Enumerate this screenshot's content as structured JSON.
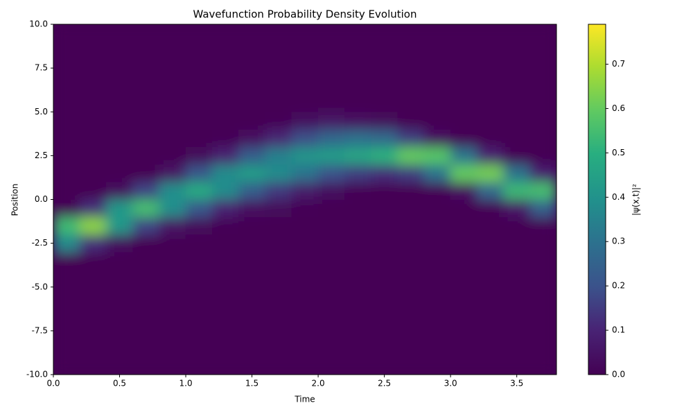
{
  "chart_data": {
    "type": "heatmap",
    "title": "Wavefunction Probability Density Evolution",
    "x_label": "Time",
    "y_label": "Position",
    "colorbar_label": "|ψ(x,t)|²",
    "x": [
      0,
      0.2,
      0.4,
      0.6,
      0.8,
      1.0,
      1.2,
      1.4,
      1.6,
      1.8,
      2.0,
      2.2,
      2.4,
      2.6,
      2.8,
      3.0,
      3.2,
      3.4,
      3.6,
      3.8
    ],
    "y": [
      -10,
      -9,
      -8,
      -7,
      -6,
      -5,
      -4,
      -3,
      -2,
      -1,
      0,
      1,
      2,
      3,
      4,
      5,
      6,
      7,
      8,
      9,
      10
    ],
    "values": [
      [
        0,
        0,
        0,
        0,
        0,
        0,
        0,
        0,
        0,
        0,
        0,
        0,
        0,
        0,
        0,
        0,
        0,
        0,
        0
      ],
      [
        0,
        0,
        0,
        0,
        0,
        0,
        0,
        0,
        0,
        0,
        0,
        0,
        0,
        0,
        0,
        0,
        0,
        0,
        0
      ],
      [
        0,
        0,
        0,
        0,
        0,
        0,
        0,
        0,
        0,
        0,
        0,
        0,
        0,
        0,
        0,
        0,
        0,
        0,
        0
      ],
      [
        0,
        0,
        0,
        0,
        0,
        0,
        0,
        0,
        0,
        0,
        0,
        0,
        0,
        0,
        0,
        0,
        0,
        0,
        0
      ],
      [
        0,
        0,
        0,
        0,
        0,
        0,
        0,
        0,
        0,
        0,
        0,
        0,
        0,
        0,
        0,
        0,
        0,
        0,
        0
      ],
      [
        0,
        0,
        0,
        0,
        0,
        0,
        0,
        0,
        0,
        0,
        0,
        0,
        0,
        0,
        0,
        0,
        0,
        0,
        0
      ],
      [
        0,
        0,
        0,
        0,
        0,
        0,
        0,
        0,
        0,
        0,
        0,
        0,
        0,
        0,
        0,
        0,
        0,
        0,
        0
      ],
      [
        0.37,
        0.12,
        0.03,
        0,
        0,
        0,
        0,
        0,
        0,
        0,
        0,
        0,
        0,
        0,
        0,
        0,
        0,
        0,
        0
      ],
      [
        0.54,
        0.65,
        0.42,
        0.17,
        0.05,
        0.02,
        0.01,
        0,
        0,
        0,
        0,
        0,
        0,
        0,
        0,
        0,
        0,
        0,
        0.01
      ],
      [
        0.01,
        0.12,
        0.42,
        0.55,
        0.39,
        0.22,
        0.09,
        0.04,
        0.02,
        0.01,
        0,
        0,
        0,
        0,
        0,
        0,
        0.01,
        0.06,
        0.24
      ],
      [
        0,
        0,
        0.03,
        0.17,
        0.39,
        0.48,
        0.38,
        0.23,
        0.14,
        0.07,
        0.03,
        0.01,
        0,
        0,
        0.01,
        0.04,
        0.27,
        0.53,
        0.55
      ],
      [
        0,
        0,
        0,
        0,
        0.05,
        0.22,
        0.38,
        0.43,
        0.38,
        0.3,
        0.2,
        0.15,
        0.12,
        0.15,
        0.3,
        0.6,
        0.62,
        0.3,
        0.08
      ],
      [
        0,
        0,
        0,
        0,
        0,
        0.02,
        0.09,
        0.23,
        0.34,
        0.41,
        0.43,
        0.46,
        0.5,
        0.6,
        0.58,
        0.31,
        0.09,
        0.01,
        0
      ],
      [
        0,
        0,
        0,
        0,
        0,
        0,
        0.01,
        0.04,
        0.1,
        0.19,
        0.26,
        0.29,
        0.27,
        0.15,
        0.04,
        0.01,
        0,
        0,
        0
      ],
      [
        0,
        0,
        0,
        0,
        0,
        0,
        0,
        0,
        0.01,
        0.03,
        0.05,
        0.04,
        0.02,
        0,
        0,
        0,
        0,
        0,
        0
      ],
      [
        0,
        0,
        0,
        0,
        0,
        0,
        0,
        0,
        0,
        0,
        0,
        0,
        0,
        0,
        0,
        0,
        0,
        0,
        0
      ],
      [
        0,
        0,
        0,
        0,
        0,
        0,
        0,
        0,
        0,
        0,
        0,
        0,
        0,
        0,
        0,
        0,
        0,
        0,
        0
      ],
      [
        0,
        0,
        0,
        0,
        0,
        0,
        0,
        0,
        0,
        0,
        0,
        0,
        0,
        0,
        0,
        0,
        0,
        0,
        0
      ],
      [
        0,
        0,
        0,
        0,
        0,
        0,
        0,
        0,
        0,
        0,
        0,
        0,
        0,
        0,
        0,
        0,
        0,
        0,
        0
      ],
      [
        0,
        0,
        0,
        0,
        0,
        0,
        0,
        0,
        0,
        0,
        0,
        0,
        0,
        0,
        0,
        0,
        0,
        0,
        0
      ]
    ],
    "colormap": "viridis",
    "xlim": [
      0,
      3.8
    ],
    "ylim": [
      -10,
      10
    ],
    "clim": [
      0,
      0.79
    ],
    "xticks": [
      {
        "value": 0,
        "label": "0.0"
      },
      {
        "value": 0.5,
        "label": "0.5"
      },
      {
        "value": 1,
        "label": "1.0"
      },
      {
        "value": 1.5,
        "label": "1.5"
      },
      {
        "value": 2,
        "label": "2.0"
      },
      {
        "value": 2.5,
        "label": "2.5"
      },
      {
        "value": 3,
        "label": "3.0"
      },
      {
        "value": 3.5,
        "label": "3.5"
      }
    ],
    "yticks": [
      {
        "value": -10,
        "label": "-10.0"
      },
      {
        "value": -7.5,
        "label": "-7.5"
      },
      {
        "value": -5,
        "label": "-5.0"
      },
      {
        "value": -2.5,
        "label": "-2.5"
      },
      {
        "value": 0,
        "label": "0.0"
      },
      2.5,
      {
        "value": 5,
        "label": "5.0"
      },
      7.5,
      {
        "value": 10,
        "label": "10.0"
      }
    ],
    "cticks": [
      {
        "value": 0,
        "label": "0.0"
      },
      0.1,
      0.2,
      0.3,
      0.4,
      0.5,
      0.6,
      0.7
    ]
  }
}
